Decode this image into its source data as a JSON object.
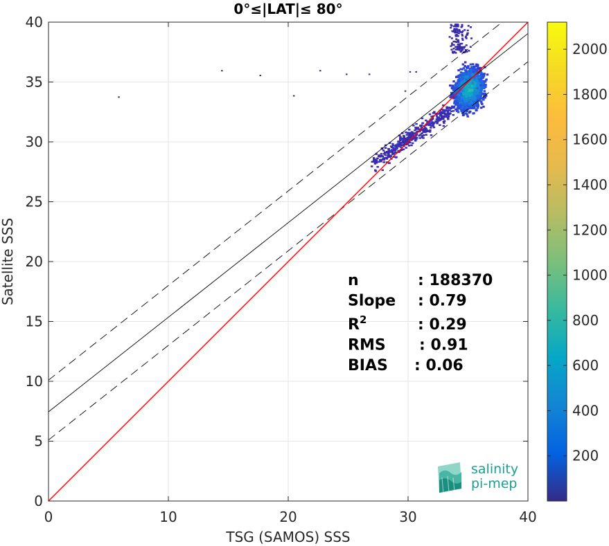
{
  "chart_data": {
    "type": "scatter",
    "subtype": "density-histogram",
    "title": "0°≤|LAT|≤ 80°",
    "xlabel": "TSG (SAMOS) SSS",
    "ylabel": "Satellite SSS",
    "xlim": [
      0,
      40
    ],
    "ylim": [
      0,
      40
    ],
    "xticks": [
      "0",
      "10",
      "20",
      "30",
      "40"
    ],
    "yticks": [
      "0",
      "5",
      "10",
      "15",
      "20",
      "25",
      "30",
      "35",
      "40"
    ],
    "grid": true,
    "colorbar": {
      "colormap": "parula",
      "min": 0,
      "max": 2120,
      "ticks": [
        "200",
        "400",
        "600",
        "800",
        "1000",
        "1200",
        "1400",
        "1600",
        "1800",
        "2000"
      ]
    },
    "lines": {
      "identity": {
        "color": "#ff0000",
        "intercept": 0,
        "slope": 1
      },
      "fit": {
        "color": "#000000",
        "intercept": 7.45,
        "slope": 0.79
      },
      "upper": {
        "color": "#000000",
        "style": "dashed",
        "intercept": 10.1,
        "slope": 0.79
      },
      "lower": {
        "color": "#000000",
        "style": "dashed",
        "intercept": 5.1,
        "slope": 0.79
      }
    },
    "density_cluster": {
      "center_x": 35,
      "center_y": 34.5
    },
    "stats": [
      {
        "label": "n",
        "value": ": 188370"
      },
      {
        "label": "Slope",
        "value": ": 0.79"
      },
      {
        "label": "R",
        "sup": "2",
        "value": ": 0.29"
      },
      {
        "label": "RMS",
        "value": ": 0.91"
      },
      {
        "label": "BIAS",
        "value": ": 0.06"
      }
    ],
    "outliers": [
      [
        5.8,
        33.8
      ],
      [
        14.4,
        36.0
      ],
      [
        17.6,
        35.6
      ],
      [
        20.4,
        33.9
      ],
      [
        22.6,
        36.0
      ],
      [
        24.8,
        35.7
      ],
      [
        26.7,
        35.7
      ],
      [
        30.1,
        35.9
      ],
      [
        30.6,
        35.9
      ],
      [
        29.7,
        34.3
      ]
    ]
  },
  "logo": {
    "line1": "salinity",
    "line2": "pi-mep"
  }
}
